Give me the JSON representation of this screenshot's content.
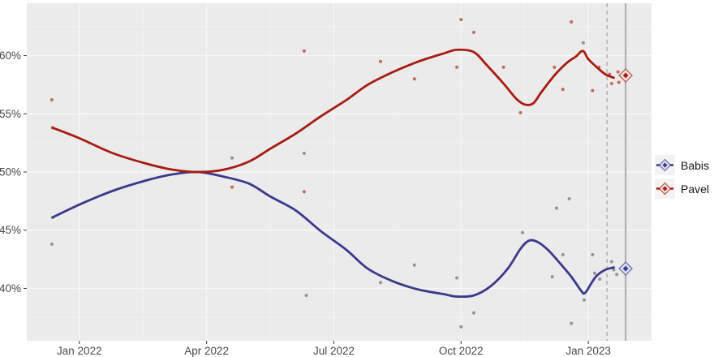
{
  "legend": {
    "items": [
      {
        "label": "Babis"
      },
      {
        "label": "Pavel"
      }
    ]
  },
  "chart_data": {
    "type": "line",
    "title": "",
    "xlabel": "",
    "ylabel": "",
    "grid": true,
    "legend_position": "right",
    "x_axis": {
      "unit": "months since Jan 2022",
      "domain": [
        -1.24,
        13.49
      ],
      "ticks": [
        0,
        3,
        6,
        9,
        12
      ],
      "tick_labels": [
        "Jan 2022",
        "Apr 2022",
        "Jul 2022",
        "Oct 2022",
        "Jan 2023"
      ],
      "minor": [
        1.5,
        4.5,
        7.5,
        10.5
      ]
    },
    "y_axis": {
      "unit": "percent",
      "domain": [
        35.5,
        64.5
      ],
      "ticks": [
        40,
        45,
        50,
        55,
        60
      ],
      "tick_labels": [
        "40%",
        "45%",
        "50%",
        "55%",
        "60%"
      ],
      "minor": [
        37.5,
        42.5,
        47.5,
        52.5,
        57.5,
        62.5
      ]
    },
    "colors": {
      "panel": "#EBEBEB",
      "grid_major": "#F7F7F7",
      "grid_minor": "#F1F1F1",
      "tick": "#333333",
      "label": "#484848",
      "vline_dashed": "#A8A8A8",
      "vline_solid": "#ABABAB"
    },
    "vlines": [
      {
        "x": 12.44,
        "style": "dashed"
      },
      {
        "x": 12.88,
        "style": "solid"
      }
    ],
    "series": [
      {
        "name": "Babis",
        "color": "#3A398C",
        "light": "#DEDEEE",
        "point_color": "#8A8A8E",
        "final_result": {
          "x": 12.88,
          "value": 41.7
        },
        "trend": [
          [
            -0.63,
            46.1
          ],
          [
            0,
            47.2
          ],
          [
            0.8,
            48.4
          ],
          [
            1.6,
            49.3
          ],
          [
            2.2,
            49.8
          ],
          [
            2.8,
            50.0
          ],
          [
            3.4,
            49.6
          ],
          [
            4.0,
            49.0
          ],
          [
            4.5,
            47.9
          ],
          [
            5.1,
            46.7
          ],
          [
            5.7,
            44.9
          ],
          [
            6.3,
            43.3
          ],
          [
            6.8,
            41.7
          ],
          [
            7.4,
            40.6
          ],
          [
            8.0,
            39.9
          ],
          [
            8.6,
            39.5
          ],
          [
            8.9,
            39.3
          ],
          [
            9.3,
            39.4
          ],
          [
            9.7,
            40.2
          ],
          [
            10.1,
            41.7
          ],
          [
            10.4,
            43.4
          ],
          [
            10.6,
            44.1
          ],
          [
            10.8,
            44.0
          ],
          [
            11.05,
            43.3
          ],
          [
            11.3,
            42.3
          ],
          [
            11.6,
            41.0
          ],
          [
            11.83,
            39.8
          ],
          [
            11.92,
            39.6
          ],
          [
            12.08,
            40.5
          ],
          [
            12.2,
            41.1
          ],
          [
            12.4,
            41.6
          ],
          [
            12.6,
            41.8
          ]
        ],
        "polls": [
          [
            -0.65,
            43.8
          ],
          [
            -0.63,
            46.1
          ],
          [
            3.6,
            51.2
          ],
          [
            5.3,
            51.6
          ],
          [
            5.35,
            39.4
          ],
          [
            7.1,
            40.5
          ],
          [
            7.9,
            42.0
          ],
          [
            8.9,
            40.9
          ],
          [
            9.0,
            36.7
          ],
          [
            9.3,
            37.9
          ],
          [
            10.45,
            44.8
          ],
          [
            11.15,
            41.0
          ],
          [
            11.25,
            46.9
          ],
          [
            11.4,
            42.9
          ],
          [
            11.55,
            47.7
          ],
          [
            11.6,
            37.0
          ],
          [
            11.88,
            61.1
          ],
          [
            11.9,
            39.0
          ],
          [
            12.1,
            42.9
          ],
          [
            12.15,
            41.3
          ],
          [
            12.27,
            40.8
          ],
          [
            12.55,
            42.3
          ],
          [
            12.6,
            41.6
          ],
          [
            12.67,
            41.2
          ]
        ]
      },
      {
        "name": "Pavel",
        "color": "#A81B10",
        "light": "#F2DFDC",
        "point_color": "#C05A50",
        "final_result": {
          "x": 12.88,
          "value": 58.3
        },
        "trend": [
          [
            -0.63,
            53.8
          ],
          [
            0,
            52.9
          ],
          [
            0.8,
            51.6
          ],
          [
            1.6,
            50.7
          ],
          [
            2.2,
            50.2
          ],
          [
            2.8,
            50.0
          ],
          [
            3.4,
            50.2
          ],
          [
            4.0,
            50.9
          ],
          [
            4.5,
            52.0
          ],
          [
            5.1,
            53.3
          ],
          [
            5.7,
            54.8
          ],
          [
            6.3,
            56.2
          ],
          [
            6.8,
            57.5
          ],
          [
            7.4,
            58.6
          ],
          [
            8.0,
            59.5
          ],
          [
            8.6,
            60.2
          ],
          [
            8.9,
            60.5
          ],
          [
            9.3,
            60.3
          ],
          [
            9.6,
            59.2
          ],
          [
            10.0,
            57.6
          ],
          [
            10.3,
            56.3
          ],
          [
            10.5,
            55.8
          ],
          [
            10.7,
            55.9
          ],
          [
            10.9,
            56.9
          ],
          [
            11.2,
            58.3
          ],
          [
            11.5,
            59.4
          ],
          [
            11.7,
            59.9
          ],
          [
            11.87,
            60.4
          ],
          [
            12.0,
            59.7
          ],
          [
            12.2,
            59.0
          ],
          [
            12.4,
            58.4
          ],
          [
            12.6,
            58.1
          ]
        ],
        "polls": [
          [
            -0.65,
            56.2
          ],
          [
            -0.63,
            53.8
          ],
          [
            3.6,
            48.7
          ],
          [
            5.3,
            60.4
          ],
          [
            5.3,
            48.3
          ],
          [
            7.1,
            59.5
          ],
          [
            7.9,
            58.0
          ],
          [
            8.9,
            59.0
          ],
          [
            9.0,
            63.1
          ],
          [
            9.3,
            62.0
          ],
          [
            10.0,
            59.0
          ],
          [
            10.4,
            55.1
          ],
          [
            11.2,
            59.0
          ],
          [
            11.4,
            57.1
          ],
          [
            11.6,
            62.9
          ],
          [
            12.1,
            57.0
          ],
          [
            12.25,
            59.0
          ],
          [
            12.5,
            58.4
          ],
          [
            12.55,
            57.6
          ],
          [
            12.7,
            58.6
          ],
          [
            12.72,
            57.7
          ]
        ]
      }
    ]
  }
}
